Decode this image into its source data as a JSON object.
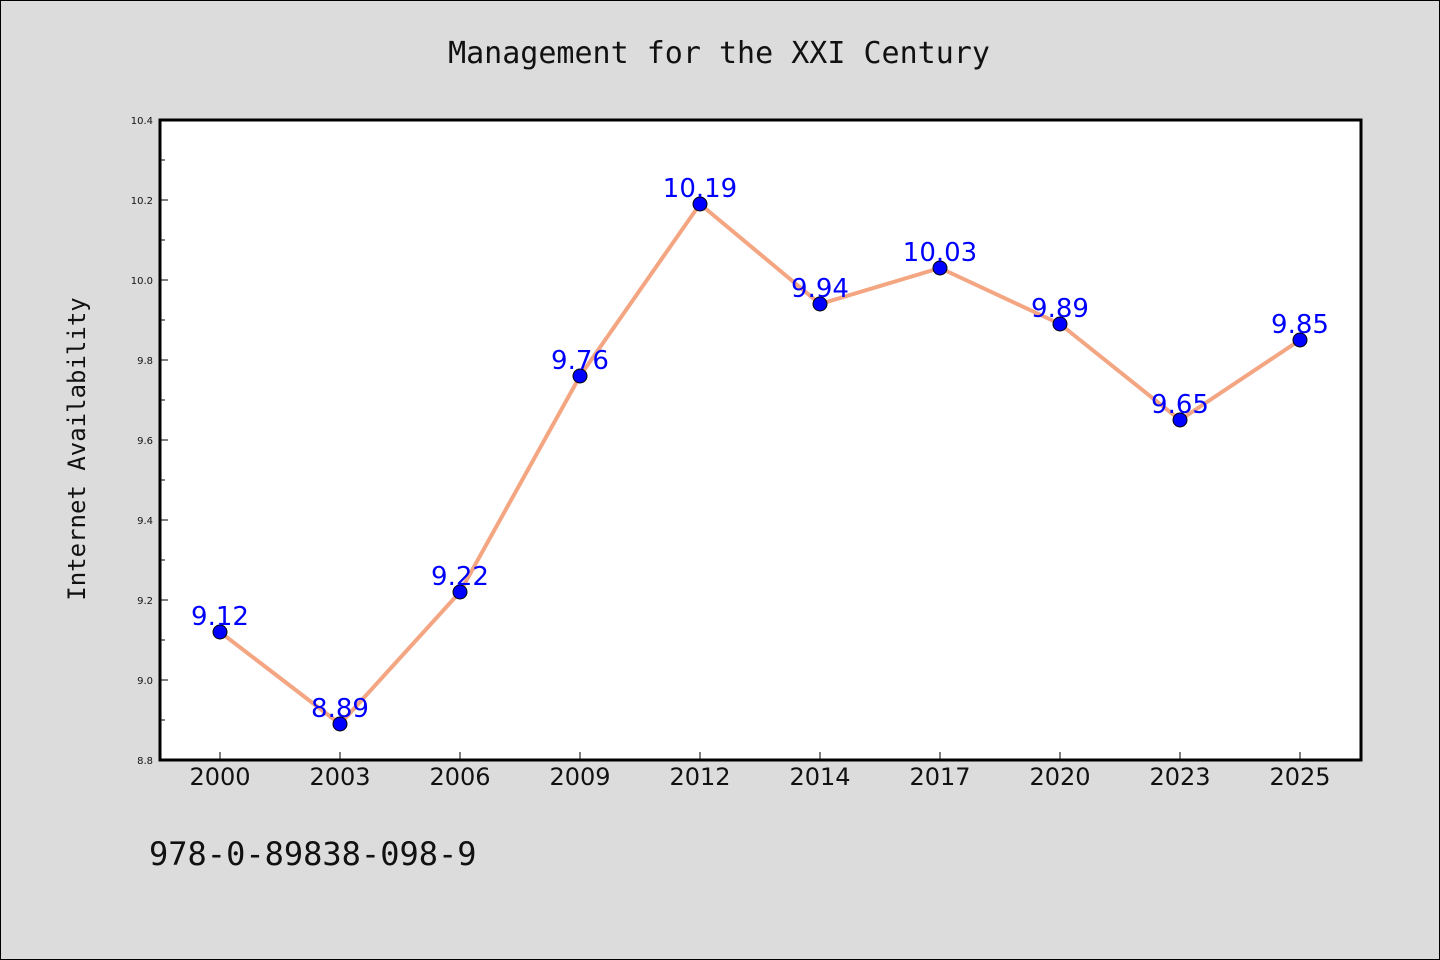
{
  "chart_data": {
    "type": "line",
    "title": "Management for the XXI Century",
    "xlabel": "",
    "ylabel": "Internet Availability",
    "categories": [
      "2000",
      "2003",
      "2006",
      "2009",
      "2012",
      "2014",
      "2017",
      "2020",
      "2023",
      "2025"
    ],
    "series": [
      {
        "values": [
          9.12,
          8.89,
          9.22,
          9.76,
          10.19,
          9.94,
          10.03,
          9.89,
          9.65,
          9.85
        ]
      }
    ],
    "data_labels": [
      "9.12",
      "8.89",
      "9.22",
      "9.76",
      "10.19",
      "9.94",
      "10.03",
      "9.89",
      "9.65",
      "9.85"
    ],
    "ylim": [
      8.8,
      10.4
    ],
    "yticks": [
      "8.8",
      "9.0",
      "9.2",
      "9.4",
      "9.6",
      "9.8",
      "10.0",
      "10.2",
      "10.4"
    ],
    "grid": false,
    "legend": "none",
    "colors": {
      "line": "#f4a582",
      "marker": "#0000ff",
      "data_label": "#0000ff",
      "plot_background": "#ffffff",
      "figure_background": "#dcdcdc"
    }
  },
  "footer": {
    "isbn": "978-0-89838-098-9"
  }
}
